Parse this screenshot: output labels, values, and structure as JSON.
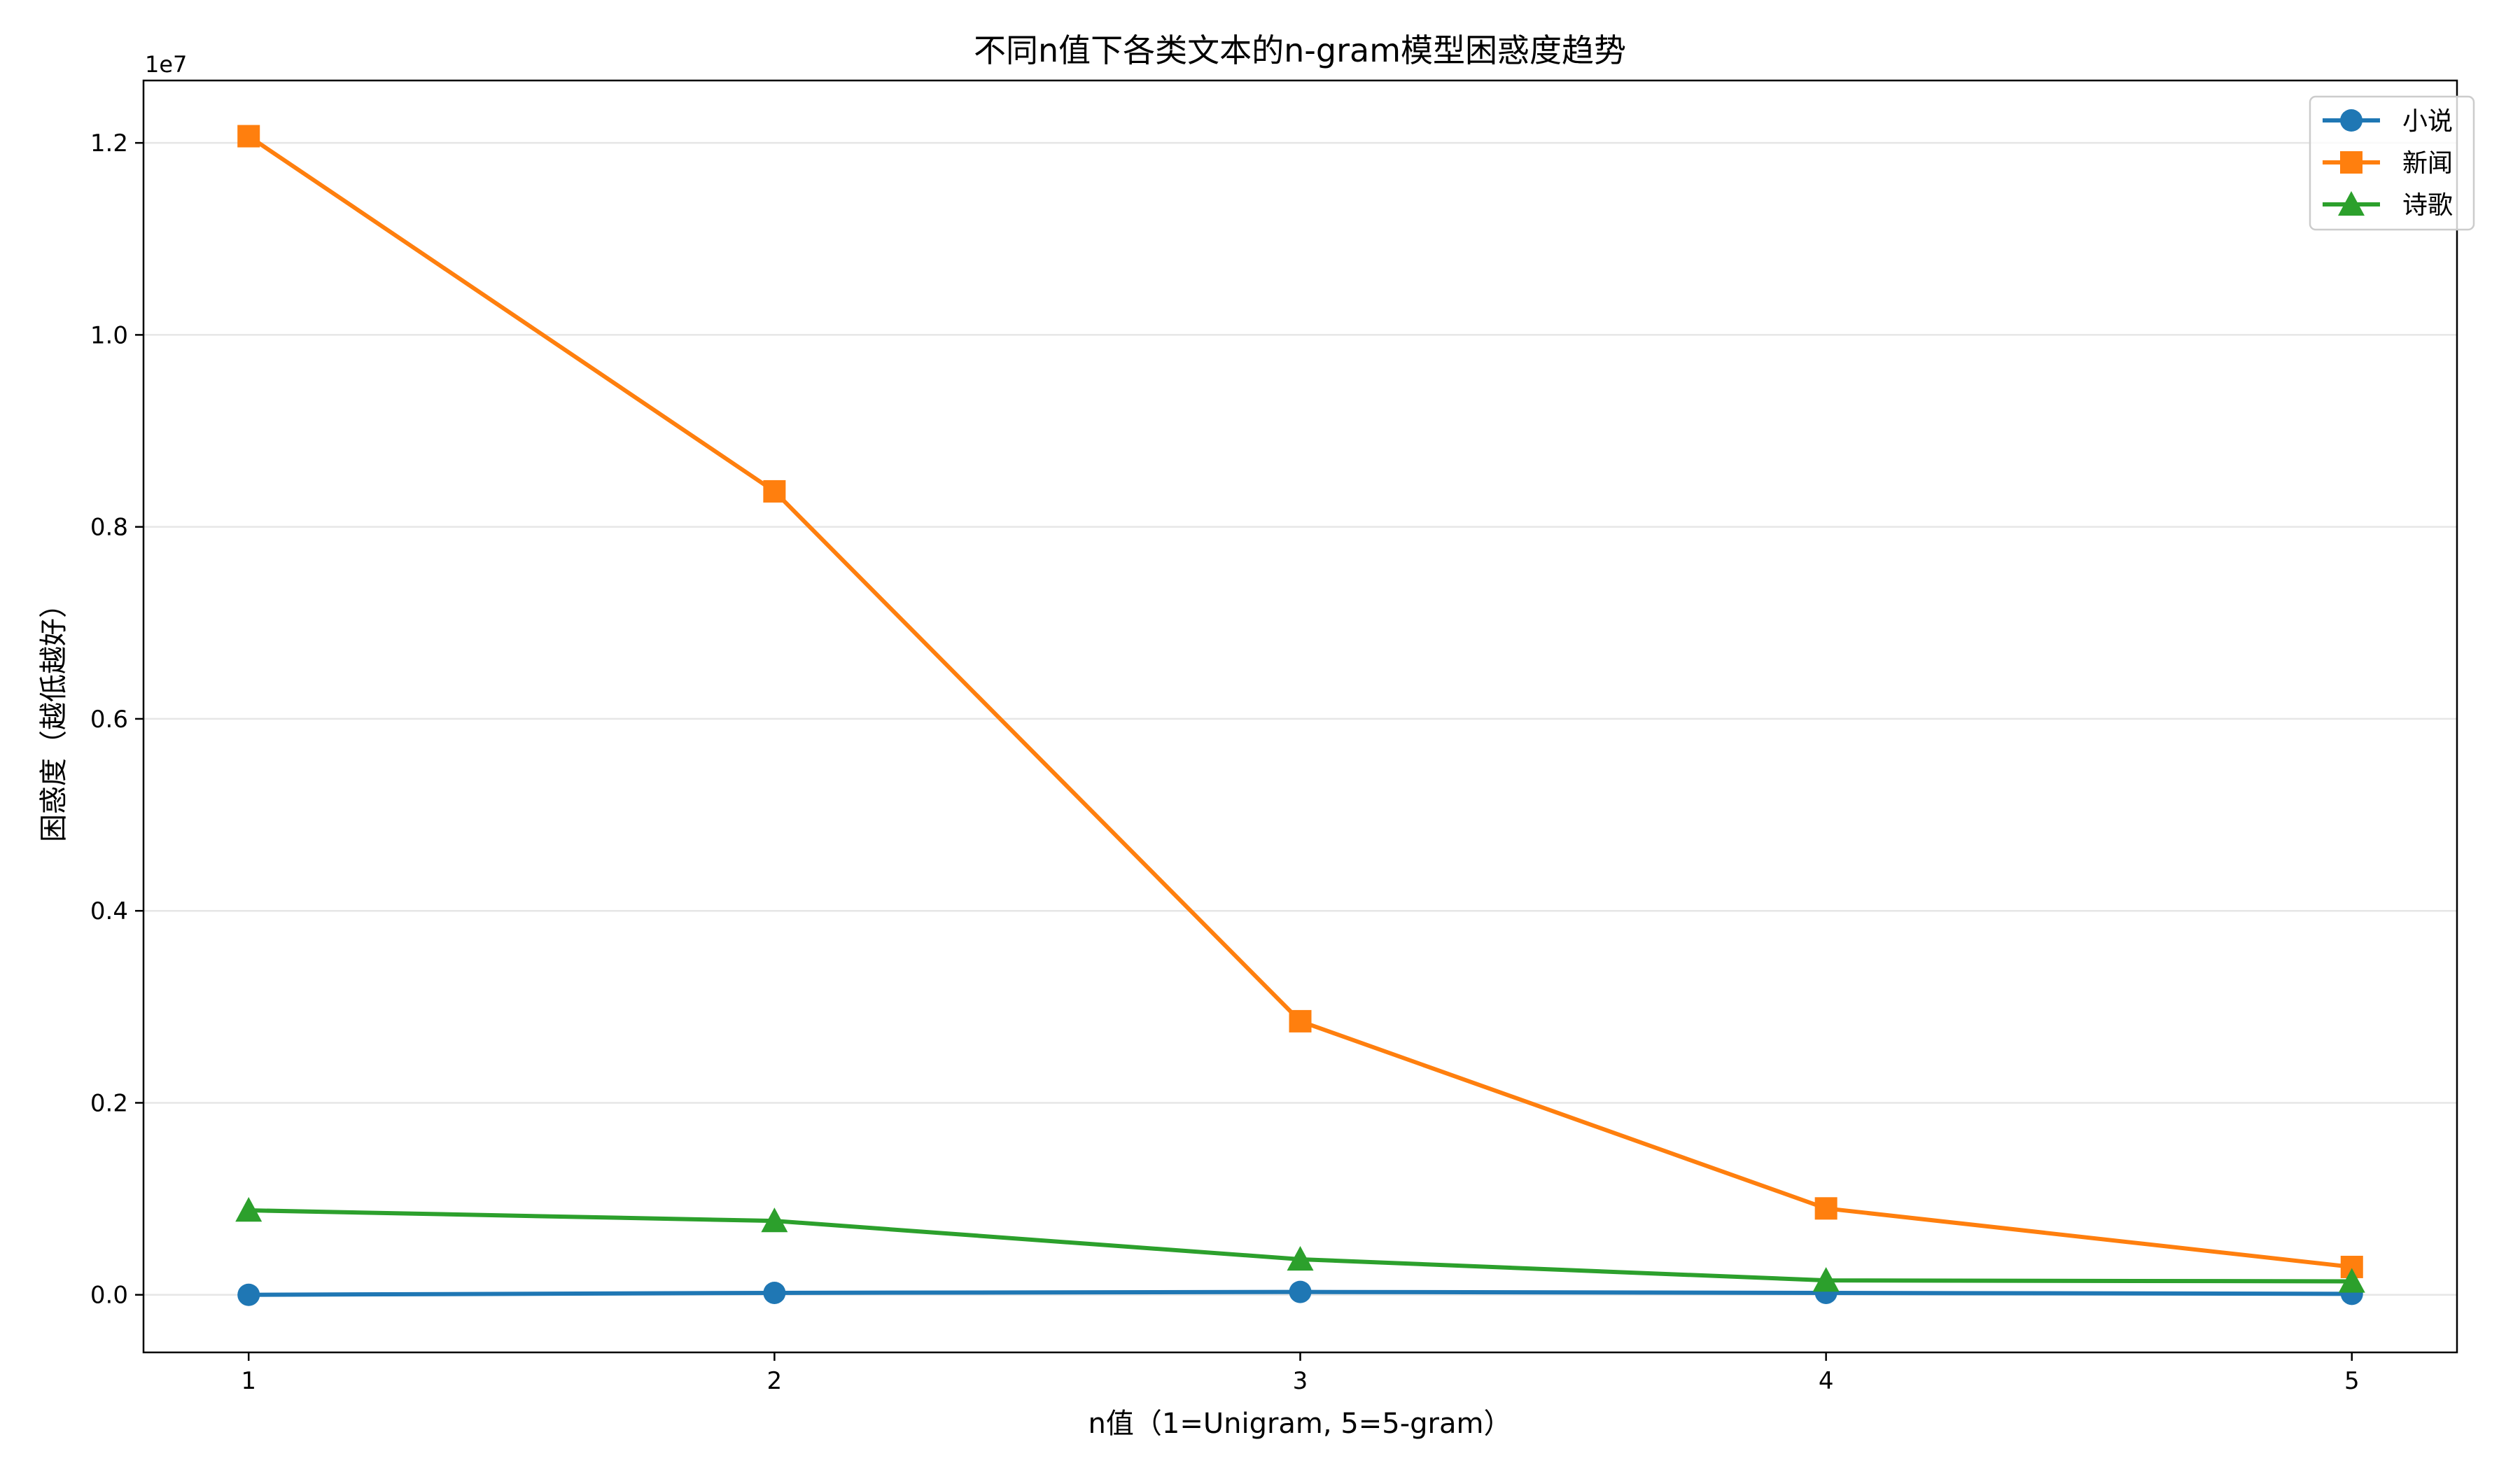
{
  "chart_data": {
    "type": "line",
    "title": "不同n值下各类文本的n-gram模型困惑度趋势",
    "xlabel": "n值（1=Unigram, 5=5-gram）",
    "ylabel": "困惑度（越低越好）",
    "y_offset_label": "1e7",
    "x": [
      1,
      2,
      3,
      4,
      5
    ],
    "x_tick_labels": [
      "1",
      "2",
      "3",
      "4",
      "5"
    ],
    "y_ticks": [
      0.0,
      0.2,
      0.4,
      0.6,
      0.8,
      1.0,
      1.2
    ],
    "y_tick_labels": [
      "0.0",
      "0.2",
      "0.4",
      "0.6",
      "0.8",
      "1.0",
      "1.2"
    ],
    "xlim": [
      0.8,
      5.2
    ],
    "ylim": [
      -0.06,
      1.265
    ],
    "y_scale_note": "values in units of 1e7",
    "grid": "horizontal",
    "legend_position": "top-right",
    "series": [
      {
        "name": "小说",
        "values": [
          0.0,
          0.002,
          0.003,
          0.002,
          0.001
        ],
        "color": "#1f77b4",
        "marker": "circle"
      },
      {
        "name": "新闻",
        "values": [
          1.207,
          0.837,
          0.285,
          0.09,
          0.029
        ],
        "color": "#ff7f0e",
        "marker": "square"
      },
      {
        "name": "诗歌",
        "values": [
          0.088,
          0.077,
          0.037,
          0.015,
          0.014
        ],
        "color": "#2ca02c",
        "marker": "triangle"
      }
    ]
  }
}
